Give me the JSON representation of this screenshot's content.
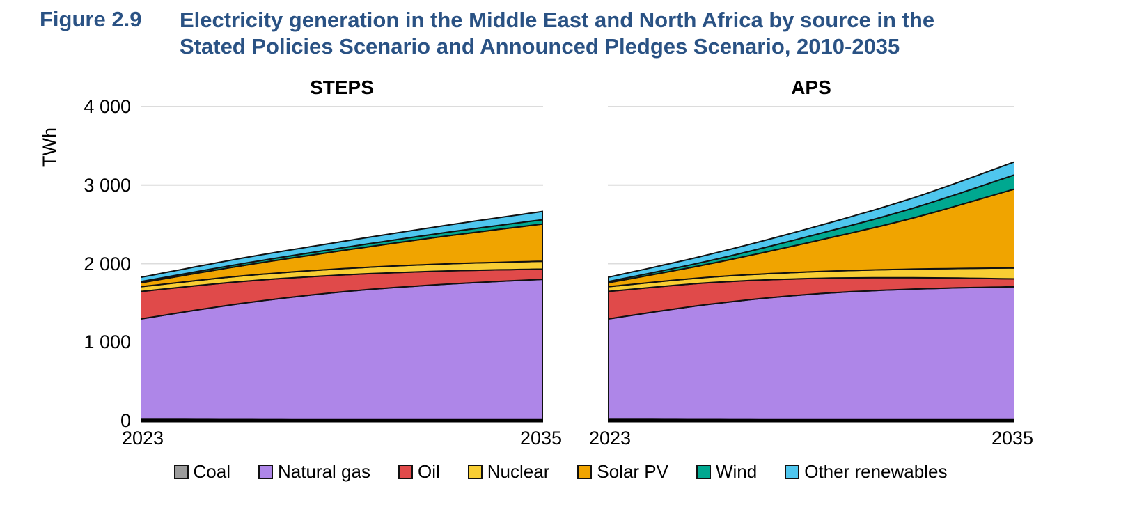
{
  "figure": {
    "label": "Figure 2.9",
    "title_lines": [
      "Electricity generation in the Middle East and North Africa by source in the",
      "Stated Policies Scenario and Announced Pledges Scenario, 2010-2035"
    ],
    "title_color": "#2A5284"
  },
  "y_axis": {
    "unit": "TWh",
    "tick_labels": [
      "4 000",
      "3 000",
      "2 000",
      "1 000",
      "0"
    ],
    "tick_values": [
      4000,
      3000,
      2000,
      1000,
      0
    ],
    "max": 4000,
    "gridline_color": "#DCDCDC"
  },
  "x_axis": {
    "tick_labels": [
      "2023",
      "2035"
    ]
  },
  "legend": [
    {
      "label": "Coal",
      "color": "#9B9B9B"
    },
    {
      "label": "Natural gas",
      "color": "#AE86E8"
    },
    {
      "label": "Oil",
      "color": "#E04A4A"
    },
    {
      "label": "Nuclear",
      "color": "#F8CE34"
    },
    {
      "label": "Solar PV",
      "color": "#F0A400"
    },
    {
      "label": "Wind",
      "color": "#00A890"
    },
    {
      "label": "Other renewables",
      "color": "#4FC6EE"
    }
  ],
  "chart_data": [
    {
      "type": "area",
      "stacked": true,
      "panel_title": "STEPS",
      "ylabel": "TWh",
      "ylim": [
        0,
        4000
      ],
      "x": [
        2023,
        2026,
        2029,
        2032,
        2035
      ],
      "x_ticks_shown": [
        "2023",
        "2035"
      ],
      "grid": true,
      "legend_position": "bottom",
      "series": [
        {
          "name": "Coal",
          "color": "#9B9B9B",
          "values": [
            25,
            22,
            20,
            20,
            20
          ]
        },
        {
          "name": "Natural gas",
          "color": "#AE86E8",
          "values": [
            1270,
            1470,
            1620,
            1715,
            1780
          ]
        },
        {
          "name": "Oil",
          "color": "#E04A4A",
          "values": [
            350,
            280,
            215,
            170,
            130
          ]
        },
        {
          "name": "Nuclear",
          "color": "#F8CE34",
          "values": [
            60,
            70,
            80,
            90,
            100
          ]
        },
        {
          "name": "Solar PV",
          "color": "#F0A400",
          "values": [
            50,
            130,
            230,
            350,
            475
          ]
        },
        {
          "name": "Wind",
          "color": "#00A890",
          "values": [
            15,
            25,
            35,
            45,
            55
          ]
        },
        {
          "name": "Other renewables",
          "color": "#4FC6EE",
          "values": [
            55,
            70,
            80,
            90,
            105
          ]
        }
      ],
      "totals": [
        1825,
        2067,
        2280,
        2480,
        2665
      ]
    },
    {
      "type": "area",
      "stacked": true,
      "panel_title": "APS",
      "ylabel": "TWh",
      "ylim": [
        0,
        4000
      ],
      "x": [
        2023,
        2026,
        2029,
        2032,
        2035
      ],
      "x_ticks_shown": [
        "2023",
        "2035"
      ],
      "grid": true,
      "legend_position": "bottom",
      "series": [
        {
          "name": "Coal",
          "color": "#9B9B9B",
          "values": [
            25,
            22,
            20,
            20,
            20
          ]
        },
        {
          "name": "Natural gas",
          "color": "#AE86E8",
          "values": [
            1270,
            1460,
            1590,
            1655,
            1685
          ]
        },
        {
          "name": "Oil",
          "color": "#E04A4A",
          "values": [
            350,
            275,
            200,
            145,
            100
          ]
        },
        {
          "name": "Nuclear",
          "color": "#F8CE34",
          "values": [
            60,
            70,
            85,
            110,
            140
          ]
        },
        {
          "name": "Solar PV",
          "color": "#F0A400",
          "values": [
            50,
            170,
            380,
            650,
            1005
          ]
        },
        {
          "name": "Wind",
          "color": "#00A890",
          "values": [
            15,
            40,
            80,
            125,
            180
          ]
        },
        {
          "name": "Other renewables",
          "color": "#4FC6EE",
          "values": [
            55,
            80,
            100,
            130,
            165
          ]
        }
      ],
      "totals": [
        1825,
        2117,
        2455,
        2835,
        3295
      ]
    }
  ]
}
